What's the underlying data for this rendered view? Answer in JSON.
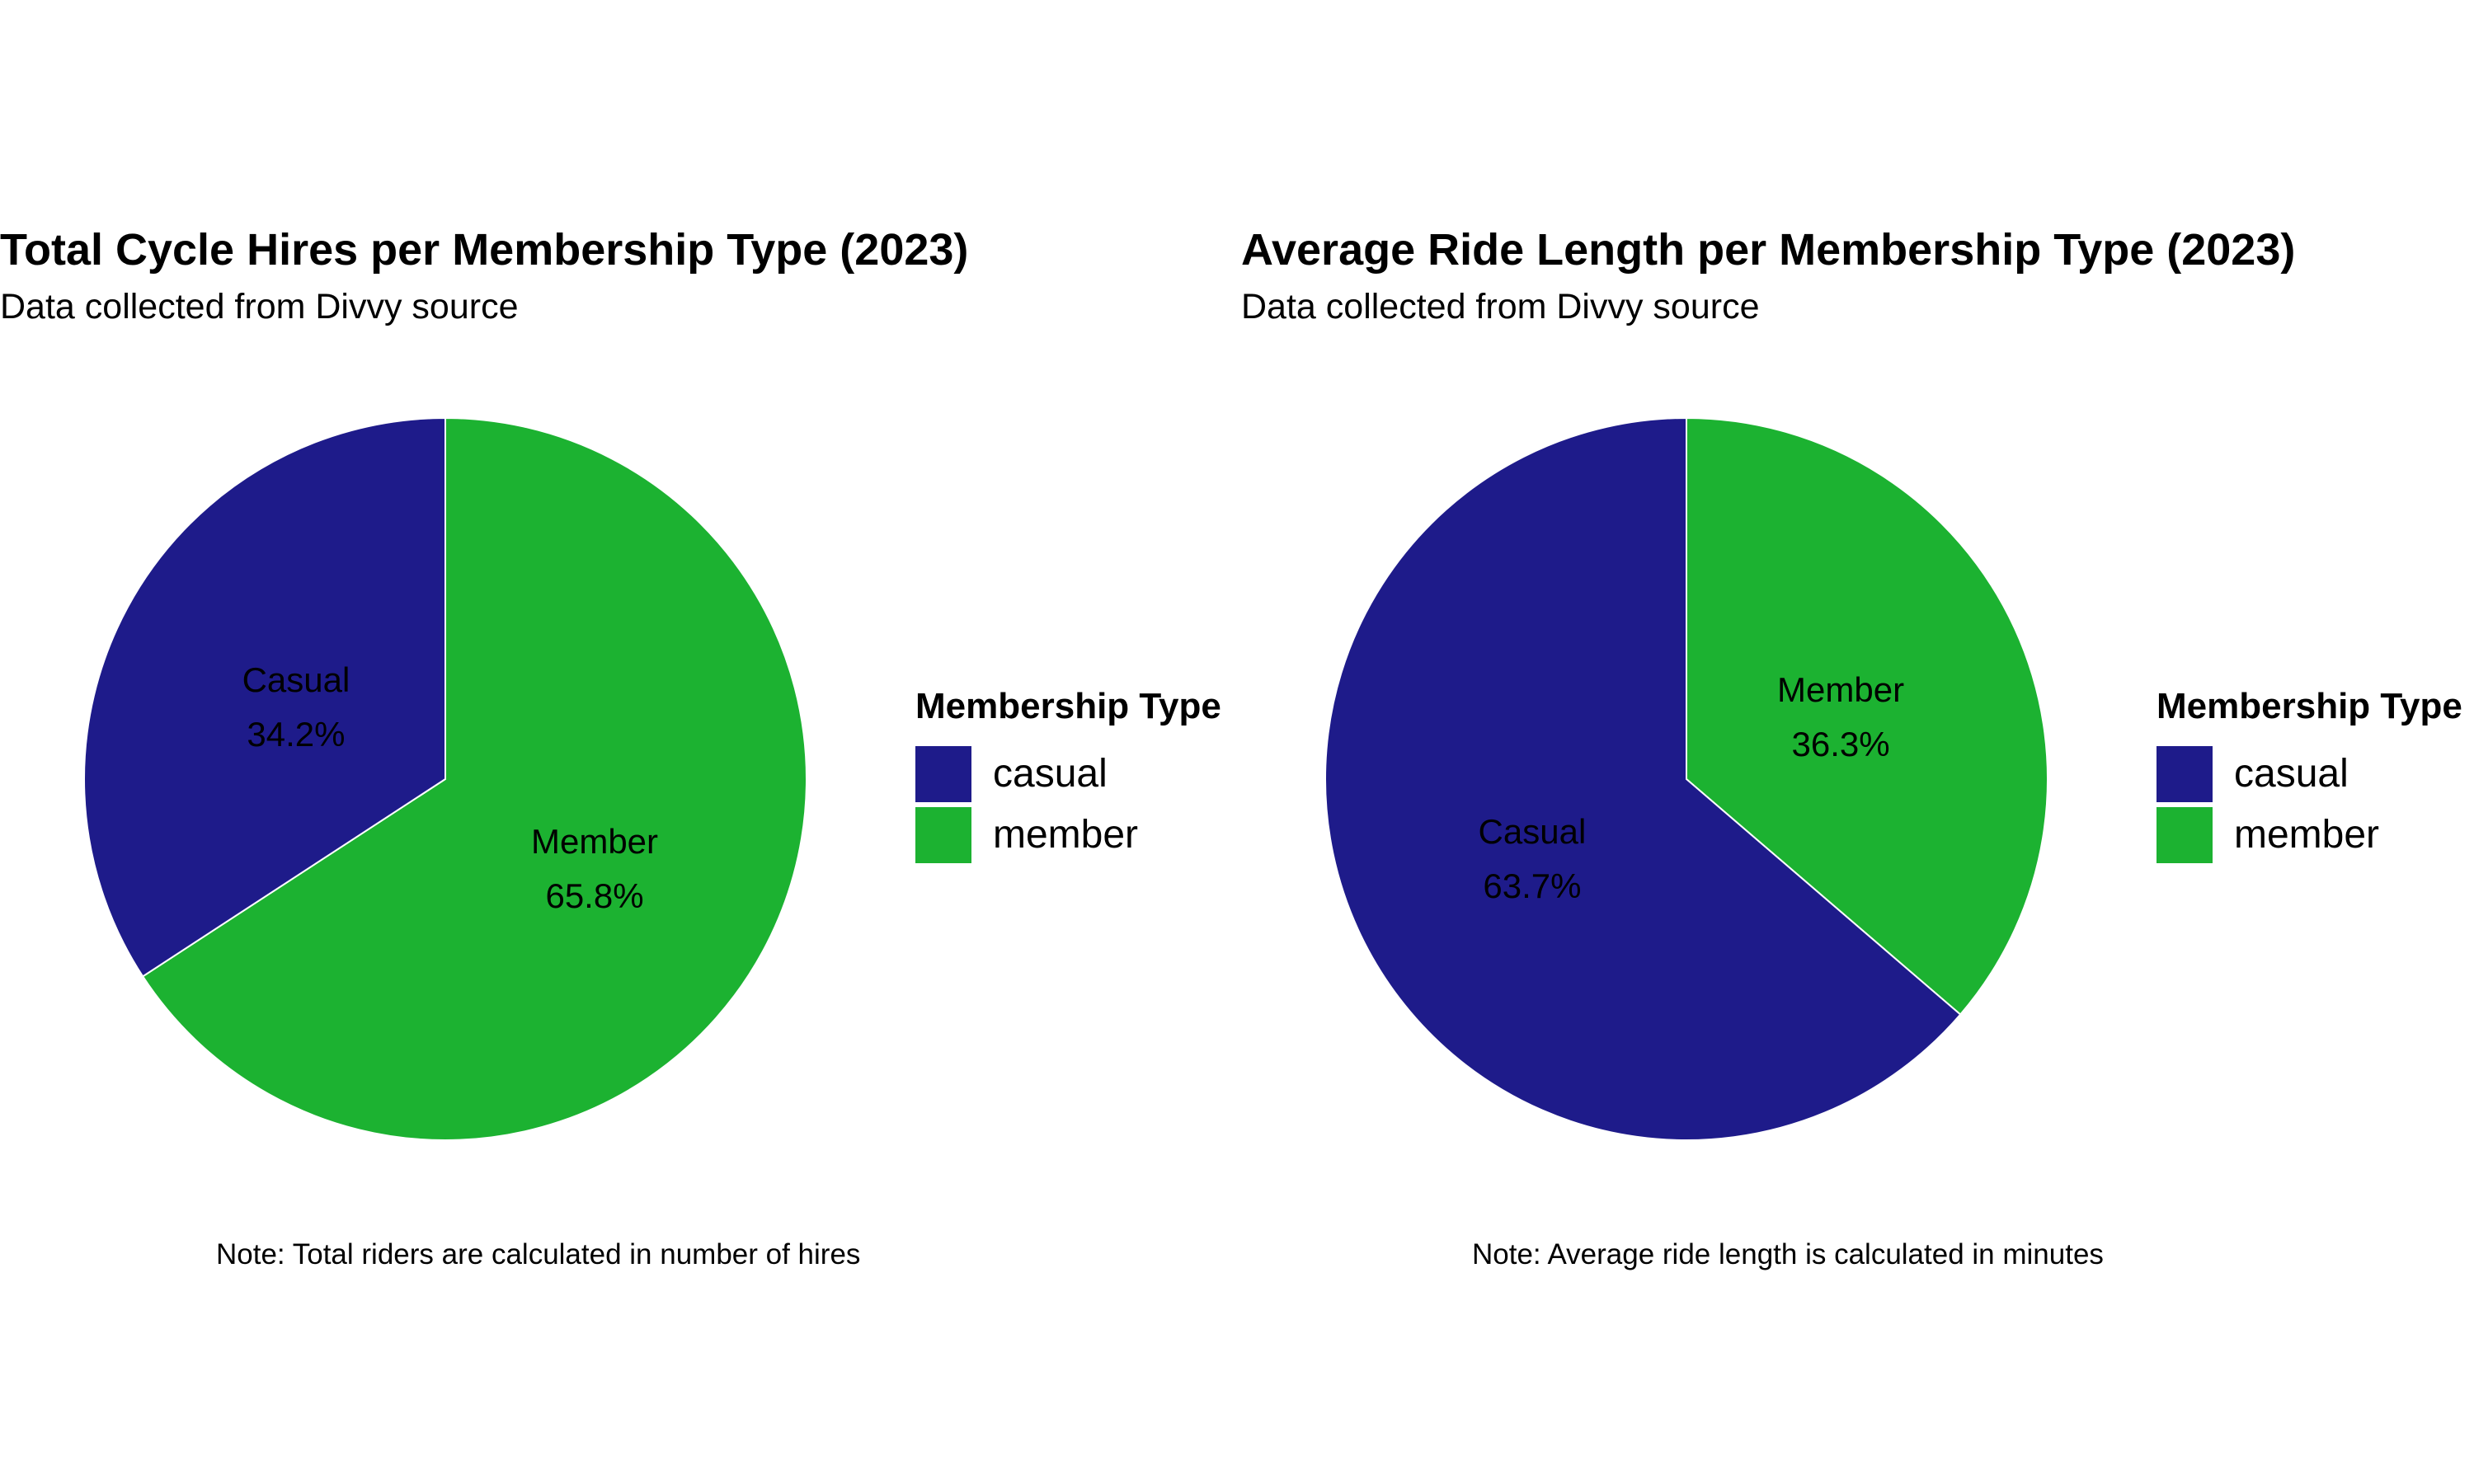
{
  "colors": {
    "casual": "#1e1b8a",
    "member": "#1cb231",
    "background": "#ffffff"
  },
  "chart_data": [
    {
      "type": "pie",
      "title": "Total Cycle Hires per Membership Type (2023)",
      "subtitle": "Data collected from Divvy source",
      "categories": [
        "casual",
        "member"
      ],
      "values": [
        34.2,
        65.8
      ],
      "slice_labels": [
        {
          "name": "Casual",
          "value": "34.2%"
        },
        {
          "name": "Member",
          "value": "65.8%"
        }
      ],
      "legend": {
        "title": "Membership Type",
        "items": [
          "casual",
          "member"
        ],
        "placement": "right"
      },
      "note": "Note: Total riders are calculated in number of hires"
    },
    {
      "type": "pie",
      "title": "Average Ride Length per Membership Type (2023)",
      "subtitle": "Data collected from Divvy source",
      "categories": [
        "casual",
        "member"
      ],
      "values": [
        63.7,
        36.3
      ],
      "slice_labels": [
        {
          "name": "Casual",
          "value": "63.7%"
        },
        {
          "name": "Member",
          "value": "36.3%"
        }
      ],
      "legend": {
        "title": "Membership Type",
        "items": [
          "casual",
          "member"
        ],
        "placement": "right"
      },
      "note": "Note: Average ride length is calculated in minutes"
    }
  ]
}
